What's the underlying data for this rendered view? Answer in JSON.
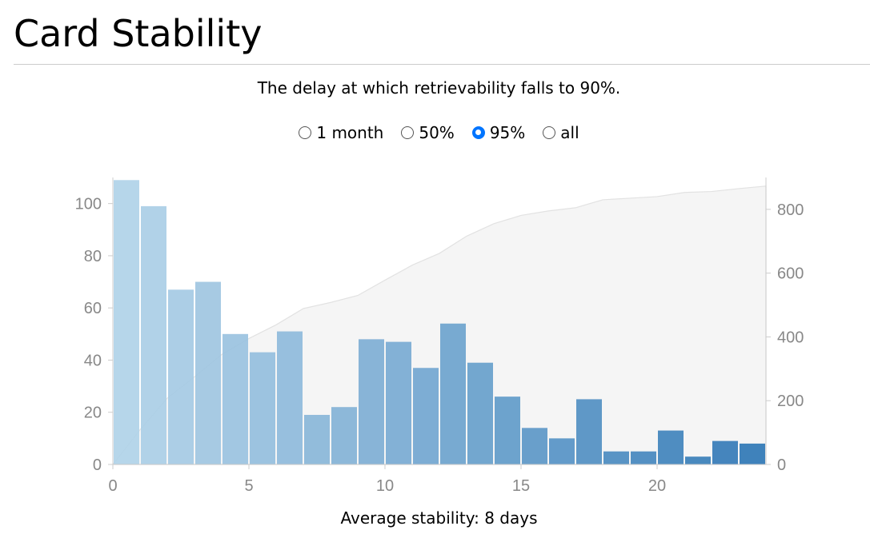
{
  "page": {
    "title": "Card Stability",
    "subtitle": "The delay at which retrievability falls to 90%.",
    "footer_label": "Average stability:",
    "footer_value": "8 days"
  },
  "range_options": [
    {
      "label": "1 month",
      "selected": false
    },
    {
      "label": "50%",
      "selected": false
    },
    {
      "label": "95%",
      "selected": true
    },
    {
      "label": "all",
      "selected": false
    }
  ],
  "colors": {
    "bar_start": "#b0d2e8",
    "bar_end": "#2f77b5",
    "cumulative_fill": "#f5f5f5",
    "cumulative_stroke": "#e2e2e2",
    "axis": "#cccccc",
    "tick_text": "#888888"
  },
  "chart_data": {
    "type": "bar",
    "bin_width": 1,
    "x_start": 0,
    "xlim": [
      0,
      24
    ],
    "ylim": [
      0,
      110
    ],
    "y2lim": [
      0,
      900
    ],
    "x_ticks": [
      0,
      5,
      10,
      15,
      20
    ],
    "y_ticks": [
      0,
      20,
      40,
      60,
      80,
      100
    ],
    "y2_ticks": [
      0,
      200,
      400,
      600,
      800
    ],
    "values": [
      109,
      99,
      67,
      70,
      50,
      43,
      51,
      19,
      22,
      48,
      47,
      37,
      54,
      39,
      26,
      14,
      10,
      25,
      5,
      5,
      13,
      3,
      9,
      8
    ],
    "cumulative_series": {
      "type": "area",
      "axis": "right",
      "values": [
        0,
        109,
        208,
        275,
        345,
        395,
        438,
        489,
        508,
        530,
        578,
        625,
        662,
        716,
        755,
        781,
        795,
        805,
        830,
        835,
        840,
        853,
        856,
        865,
        873
      ]
    },
    "grid": false,
    "legend": "none"
  }
}
